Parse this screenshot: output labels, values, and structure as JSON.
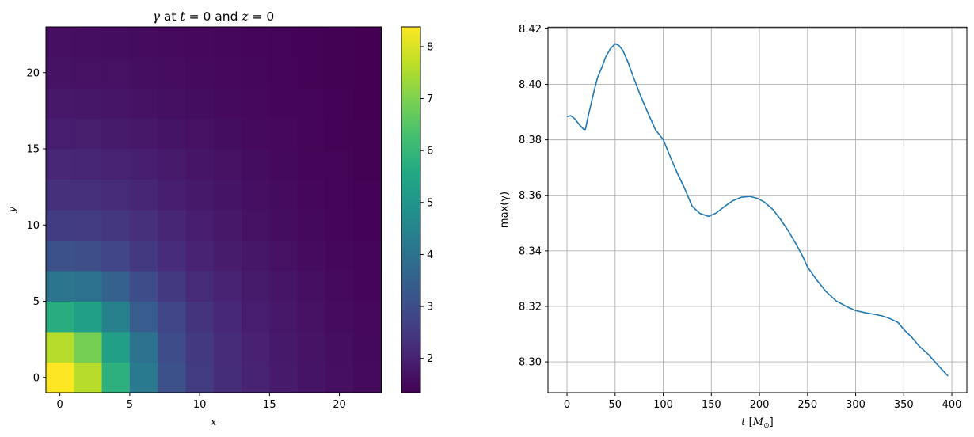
{
  "chart_data": [
    {
      "type": "heatmap",
      "title_parts": [
        "γ",
        " at ",
        "t",
        " = 0 and ",
        "z",
        " = 0"
      ],
      "title": "γ at t = 0 and z = 0",
      "xlabel": "x",
      "ylabel": "y",
      "xlim": [
        -1,
        23
      ],
      "ylim": [
        -1,
        23
      ],
      "xticks": [
        0,
        5,
        10,
        15,
        20
      ],
      "yticks": [
        0,
        5,
        10,
        15,
        20
      ],
      "x_centers": [
        0,
        2,
        4,
        6,
        8,
        10,
        12,
        14,
        16,
        18,
        20,
        22
      ],
      "y_centers": [
        0,
        2,
        4,
        6,
        8,
        10,
        12,
        14,
        16,
        18,
        20,
        22
      ],
      "cell_size": 2,
      "colormap": "viridis",
      "vmin": 1.34,
      "vmax": 8.38,
      "colorbar_ticks": [
        2,
        3,
        4,
        5,
        6,
        7,
        8
      ],
      "values": [
        [
          8.38,
          7.6,
          5.8,
          4.2,
          3.05,
          2.55,
          2.25,
          2.0,
          1.85,
          1.72,
          1.62,
          1.52
        ],
        [
          7.6,
          6.9,
          5.3,
          4.0,
          2.95,
          2.5,
          2.2,
          1.98,
          1.82,
          1.7,
          1.6,
          1.5
        ],
        [
          5.7,
          5.3,
          4.4,
          3.4,
          2.8,
          2.4,
          2.12,
          1.92,
          1.78,
          1.66,
          1.56,
          1.48
        ],
        [
          4.1,
          4.0,
          3.5,
          2.95,
          2.5,
          2.2,
          2.02,
          1.86,
          1.74,
          1.62,
          1.52,
          1.44
        ],
        [
          3.05,
          3.0,
          2.8,
          2.5,
          2.22,
          2.02,
          1.88,
          1.76,
          1.65,
          1.55,
          1.47,
          1.41
        ],
        [
          2.6,
          2.58,
          2.45,
          2.28,
          2.08,
          1.92,
          1.8,
          1.69,
          1.59,
          1.5,
          1.43,
          1.39
        ],
        [
          2.3,
          2.28,
          2.2,
          2.08,
          1.95,
          1.82,
          1.72,
          1.63,
          1.55,
          1.47,
          1.41,
          1.38
        ],
        [
          2.1,
          2.08,
          2.02,
          1.94,
          1.84,
          1.74,
          1.66,
          1.58,
          1.51,
          1.45,
          1.4,
          1.37
        ],
        [
          1.92,
          1.9,
          1.86,
          1.8,
          1.73,
          1.66,
          1.59,
          1.53,
          1.48,
          1.43,
          1.39,
          1.36
        ],
        [
          1.78,
          1.77,
          1.74,
          1.69,
          1.64,
          1.58,
          1.53,
          1.49,
          1.45,
          1.41,
          1.38,
          1.35
        ],
        [
          1.68,
          1.67,
          1.65,
          1.61,
          1.57,
          1.53,
          1.49,
          1.46,
          1.42,
          1.39,
          1.37,
          1.35
        ],
        [
          1.62,
          1.61,
          1.59,
          1.56,
          1.53,
          1.49,
          1.46,
          1.43,
          1.41,
          1.38,
          1.36,
          1.34
        ]
      ]
    },
    {
      "type": "line",
      "title": "",
      "xlabel_parts": [
        "t",
        " [",
        "M",
        "⊙",
        "]"
      ],
      "xlabel": "t [M⊙]",
      "ylabel": "max(γ)",
      "xlim": [
        -19.8,
        415.6
      ],
      "ylim": [
        8.2889,
        8.4206
      ],
      "xticks": [
        0,
        50,
        100,
        150,
        200,
        250,
        300,
        350,
        400
      ],
      "yticks": [
        8.3,
        8.32,
        8.34,
        8.36,
        8.38,
        8.4,
        8.42
      ],
      "ytick_labels": [
        "8.30",
        "8.32",
        "8.34",
        "8.36",
        "8.38",
        "8.40",
        "8.42"
      ],
      "grid": true,
      "color": "#1f77b4",
      "series": [
        {
          "name": "max(γ)",
          "x": [
            0,
            4,
            8,
            12,
            17,
            19,
            22,
            26,
            29,
            32,
            36,
            40,
            45,
            50,
            54,
            58,
            63,
            69,
            76,
            84,
            92,
            100,
            108,
            115,
            122,
            130,
            138,
            147,
            155,
            163,
            172,
            181,
            190,
            198,
            205,
            214,
            222,
            230,
            238,
            245,
            250,
            260,
            269,
            280,
            292,
            300,
            310,
            320,
            327,
            335,
            344,
            350,
            358,
            366,
            375,
            385,
            396
          ],
          "y": [
            8.3884,
            8.3887,
            8.3876,
            8.3858,
            8.3839,
            8.3837,
            8.3885,
            8.3945,
            8.3988,
            8.4027,
            8.4059,
            8.4097,
            8.4128,
            8.4146,
            8.414,
            8.4122,
            8.4083,
            8.4026,
            8.3962,
            8.3898,
            8.3836,
            8.3801,
            8.3733,
            8.3677,
            8.3627,
            8.3561,
            8.3535,
            8.3524,
            8.3536,
            8.3558,
            8.358,
            8.3593,
            8.3596,
            8.3589,
            8.3576,
            8.3549,
            8.3513,
            8.3472,
            8.3425,
            8.338,
            8.3342,
            8.3293,
            8.3254,
            8.3219,
            8.3197,
            8.3185,
            8.3177,
            8.3171,
            8.3166,
            8.3157,
            8.3142,
            8.3117,
            8.309,
            8.3057,
            8.3029,
            8.299,
            8.2949
          ]
        }
      ]
    }
  ]
}
